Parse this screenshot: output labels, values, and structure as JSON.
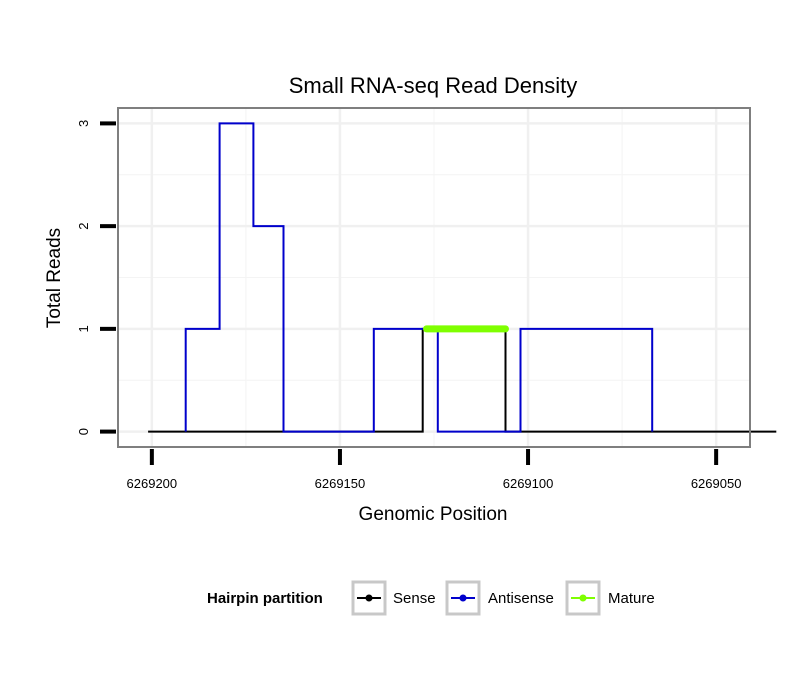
{
  "chart_data": {
    "type": "line",
    "title": "Small RNA-seq Read Density",
    "xlabel": "Genomic Position",
    "ylabel": "Total Reads",
    "x_reversed": true,
    "xlim": [
      6269209,
      6269041
    ],
    "ylim": [
      -0.15,
      3.15
    ],
    "x_ticks": [
      6269200,
      6269150,
      6269100,
      6269050
    ],
    "x_tick_labels": [
      "6269200",
      "6269150",
      "6269100",
      "6269050"
    ],
    "y_ticks": [
      0,
      1,
      2,
      3
    ],
    "y_tick_labels": [
      "0",
      "1",
      "2",
      "3"
    ],
    "grid": true,
    "series": [
      {
        "name": "Sense",
        "color": "#000000",
        "points": [
          [
            6269201,
            0
          ],
          [
            6269161,
            0
          ],
          [
            6269128,
            0
          ],
          [
            6269128,
            1
          ],
          [
            6269106,
            1
          ],
          [
            6269106,
            0
          ],
          [
            6269088,
            0
          ],
          [
            6269052,
            0
          ],
          [
            6269034,
            0
          ]
        ]
      },
      {
        "name": "Antisense",
        "color": "#0000cc",
        "points": [
          [
            6269191,
            0
          ],
          [
            6269191,
            1
          ],
          [
            6269182,
            1
          ],
          [
            6269182,
            3
          ],
          [
            6269173,
            3
          ],
          [
            6269173,
            2
          ],
          [
            6269165,
            2
          ],
          [
            6269165,
            0
          ],
          [
            6269141,
            0
          ],
          [
            6269141,
            1
          ],
          [
            6269124,
            1
          ],
          [
            6269124,
            0
          ],
          [
            6269102,
            0
          ],
          [
            6269102,
            1
          ],
          [
            6269067,
            1
          ],
          [
            6269067,
            0
          ]
        ]
      },
      {
        "name": "Mature",
        "color": "#7fff00",
        "points": [
          [
            6269127,
            1
          ],
          [
            6269106,
            1
          ]
        ]
      }
    ],
    "legend": {
      "title": "Hairpin partition",
      "position": "bottom",
      "entries": [
        "Sense",
        "Antisense",
        "Mature"
      ]
    }
  }
}
